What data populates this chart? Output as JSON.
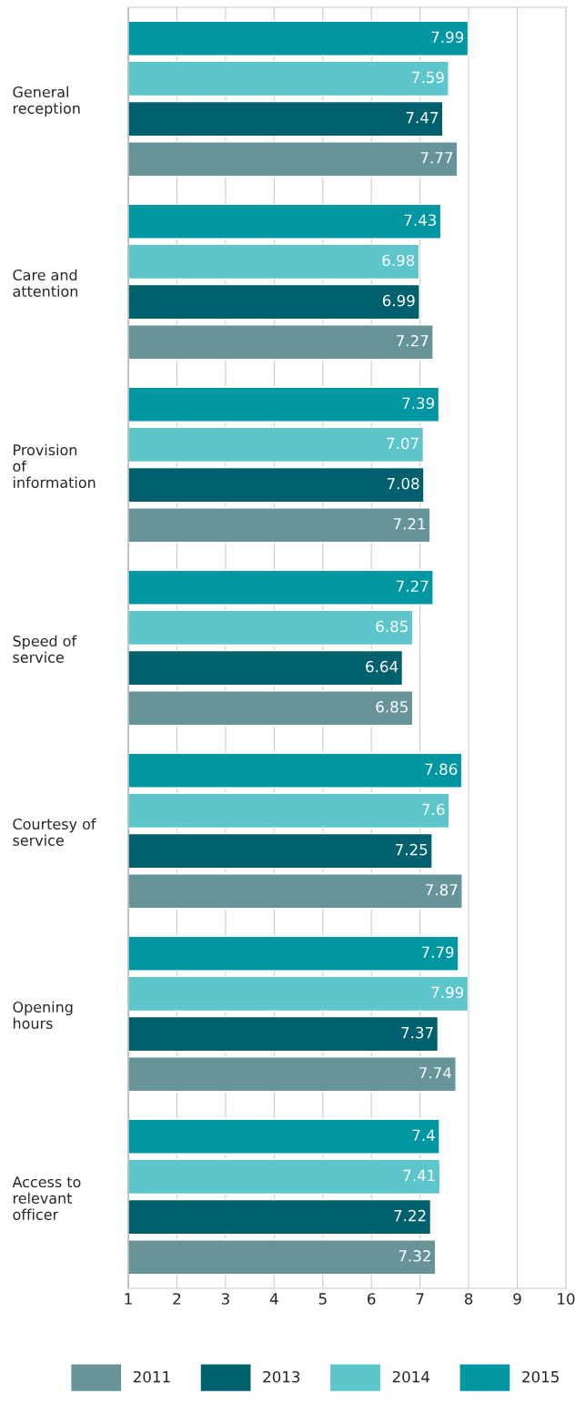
{
  "chart_data": {
    "type": "bar",
    "orientation": "horizontal",
    "categories": [
      "General reception",
      "Care and attention",
      "Provision of information",
      "Speed of service",
      "Courtesy of service",
      "Opening hours",
      "Access to relevant officer"
    ],
    "series": [
      {
        "name": "2011",
        "color": "#669499",
        "values": [
          7.77,
          7.27,
          7.21,
          6.85,
          7.87,
          7.74,
          7.32
        ]
      },
      {
        "name": "2013",
        "color": "#00606e",
        "values": [
          7.47,
          6.99,
          7.08,
          6.64,
          7.25,
          7.37,
          7.22
        ]
      },
      {
        "name": "2014",
        "color": "#5cc6cc",
        "values": [
          7.59,
          6.98,
          7.07,
          6.85,
          7.6,
          7.99,
          7.41
        ]
      },
      {
        "name": "2015",
        "color": "#0097a3",
        "values": [
          7.99,
          7.43,
          7.39,
          7.27,
          7.86,
          7.79,
          7.4
        ]
      }
    ],
    "xlim": [
      1,
      10
    ],
    "xticks": [
      1,
      2,
      3,
      4,
      5,
      6,
      7,
      8,
      9,
      10
    ],
    "grid": true,
    "legend": "bottom",
    "data_labels": true
  }
}
